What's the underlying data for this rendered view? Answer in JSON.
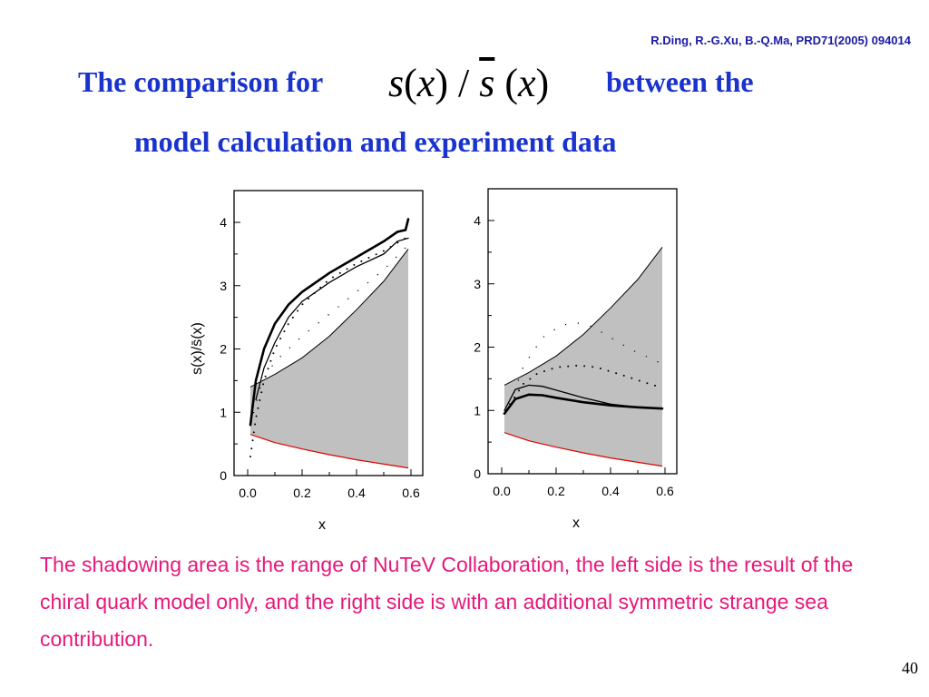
{
  "reference": "R.Ding, R.-G.Xu, B.-Q.Ma, PRD71(2005) 094014",
  "title": {
    "part1": "The comparison for",
    "formula": "s(x) / s(x)",
    "part2": "between the",
    "line2": "model calculation and experiment data"
  },
  "caption": "The shadowing area is the range of NuTeV Collaboration, the left side is the result of the chiral quark model only, and the right side is with an additional symmetric strange sea contribution.",
  "page_number": "40",
  "colors": {
    "title": "#1a33cc",
    "reference": "#1a1aa6",
    "caption": "#e6197a",
    "band": "#c0c0c0",
    "band_lower_edge": "#e00000"
  },
  "chart_data": [
    {
      "type": "line",
      "panel": "left",
      "title": "",
      "xlabel": "x",
      "ylabel": "s(x)/s̄(x)",
      "xlim": [
        0.0,
        0.6
      ],
      "ylim": [
        0,
        4.2
      ],
      "xticks": [
        "0.0",
        "0.2",
        "0.4",
        "0.6"
      ],
      "yticks": [
        "0",
        "1",
        "2",
        "3",
        "4"
      ],
      "grid": false,
      "legend": "none",
      "band": {
        "x": [
          0.01,
          0.1,
          0.2,
          0.3,
          0.4,
          0.5,
          0.59
        ],
        "upper": [
          1.4,
          1.6,
          1.86,
          2.2,
          2.62,
          3.07,
          3.58
        ],
        "lower": [
          0.65,
          0.52,
          0.42,
          0.33,
          0.25,
          0.18,
          0.12
        ]
      },
      "series": [
        {
          "style": "thick",
          "x": [
            0.01,
            0.03,
            0.06,
            0.1,
            0.15,
            0.2,
            0.3,
            0.4,
            0.5,
            0.55,
            0.58,
            0.59
          ],
          "y": [
            0.8,
            1.5,
            2.0,
            2.4,
            2.7,
            2.9,
            3.2,
            3.45,
            3.7,
            3.85,
            3.88,
            4.05
          ]
        },
        {
          "style": "thin",
          "x": [
            0.03,
            0.06,
            0.1,
            0.15,
            0.2,
            0.3,
            0.4,
            0.5,
            0.55,
            0.59
          ],
          "y": [
            1.2,
            1.7,
            2.1,
            2.5,
            2.75,
            3.05,
            3.3,
            3.5,
            3.7,
            3.75
          ]
        },
        {
          "style": "dotted",
          "x": [
            0.01,
            0.03,
            0.06,
            0.1,
            0.15,
            0.2,
            0.3,
            0.4,
            0.5,
            0.58
          ],
          "y": [
            0.3,
            0.9,
            1.5,
            2.0,
            2.4,
            2.7,
            3.1,
            3.35,
            3.55,
            3.75
          ]
        },
        {
          "style": "sparse-dotted",
          "x": [
            0.01,
            0.05,
            0.1,
            0.2,
            0.3,
            0.4,
            0.5,
            0.58
          ],
          "y": [
            0.8,
            1.45,
            1.8,
            2.2,
            2.55,
            2.9,
            3.25,
            3.6
          ]
        }
      ]
    },
    {
      "type": "line",
      "panel": "right",
      "title": "",
      "xlabel": "x",
      "ylabel": "",
      "xlim": [
        0.0,
        0.6
      ],
      "ylim": [
        0,
        4.2
      ],
      "xticks": [
        "0.0",
        "0.2",
        "0.4",
        "0.6"
      ],
      "yticks": [
        "0",
        "1",
        "2",
        "3",
        "4"
      ],
      "grid": false,
      "legend": "none",
      "band": {
        "x": [
          0.01,
          0.1,
          0.2,
          0.3,
          0.4,
          0.5,
          0.59
        ],
        "upper": [
          1.4,
          1.6,
          1.86,
          2.2,
          2.62,
          3.07,
          3.58
        ],
        "lower": [
          0.65,
          0.52,
          0.42,
          0.33,
          0.25,
          0.18,
          0.12
        ]
      },
      "series": [
        {
          "style": "thick",
          "x": [
            0.01,
            0.05,
            0.1,
            0.15,
            0.2,
            0.3,
            0.4,
            0.5,
            0.59
          ],
          "y": [
            0.95,
            1.18,
            1.25,
            1.24,
            1.2,
            1.13,
            1.08,
            1.05,
            1.03
          ]
        },
        {
          "style": "thin",
          "x": [
            0.01,
            0.05,
            0.1,
            0.15,
            0.2,
            0.3,
            0.4,
            0.5,
            0.59
          ],
          "y": [
            1.0,
            1.33,
            1.4,
            1.38,
            1.32,
            1.2,
            1.1,
            1.05,
            1.03
          ]
        },
        {
          "style": "dotted",
          "x": [
            0.03,
            0.08,
            0.13,
            0.2,
            0.28,
            0.35,
            0.45,
            0.52,
            0.58
          ],
          "y": [
            1.1,
            1.42,
            1.58,
            1.68,
            1.71,
            1.68,
            1.55,
            1.45,
            1.37
          ]
        },
        {
          "style": "sparse-dotted",
          "x": [
            0.03,
            0.08,
            0.15,
            0.22,
            0.28,
            0.33,
            0.4,
            0.48,
            0.56,
            0.58
          ],
          "y": [
            1.1,
            1.7,
            2.15,
            2.35,
            2.38,
            2.33,
            2.15,
            1.95,
            1.8,
            1.75
          ]
        }
      ]
    }
  ]
}
